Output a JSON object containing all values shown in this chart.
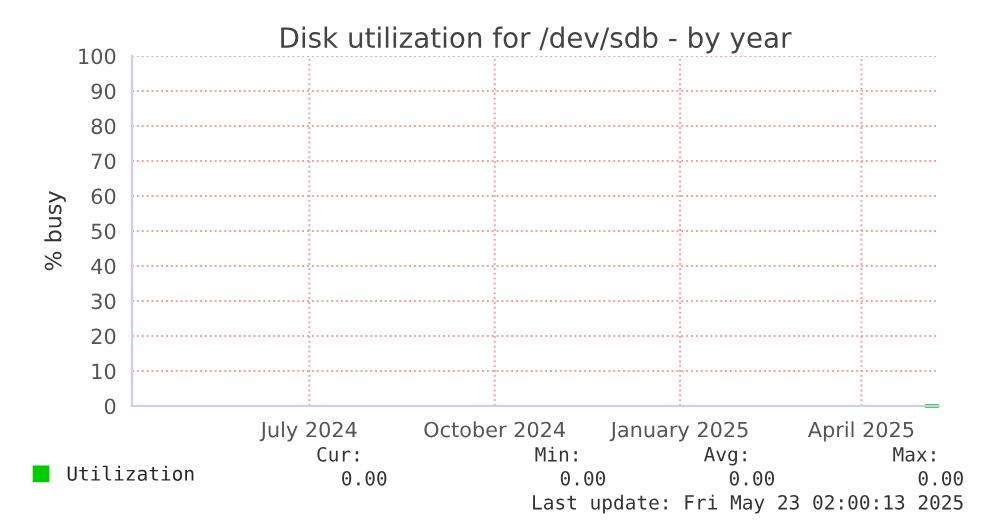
{
  "chart_data": {
    "type": "line",
    "title": "Disk utilization for /dev/sdb - by year",
    "ylabel": "% busy",
    "xlim": [
      "2024-04-18",
      "2025-05-23"
    ],
    "xticks": [
      {
        "value": "2024-07-15",
        "label": "July 2024"
      },
      {
        "value": "2024-10-15",
        "label": "October 2024"
      },
      {
        "value": "2025-01-15",
        "label": "January 2025"
      },
      {
        "value": "2025-04-15",
        "label": "April 2025"
      }
    ],
    "ylim": [
      0,
      100
    ],
    "yticks": [
      0,
      10,
      20,
      30,
      40,
      50,
      60,
      70,
      80,
      90,
      100
    ],
    "series": [
      {
        "name": "Utilization",
        "color": "#00cc00",
        "x": [
          "2025-05-17",
          "2025-05-23"
        ],
        "values": [
          0,
          0
        ]
      }
    ],
    "grid": true,
    "legend": "bottom left",
    "annotations": [
      "Cur:",
      "Min:",
      "Avg:",
      "Max:",
      "0.00",
      "0.00",
      "0.00",
      "0.00",
      "Last update: Fri May 23 02:00:13 2025"
    ]
  }
}
